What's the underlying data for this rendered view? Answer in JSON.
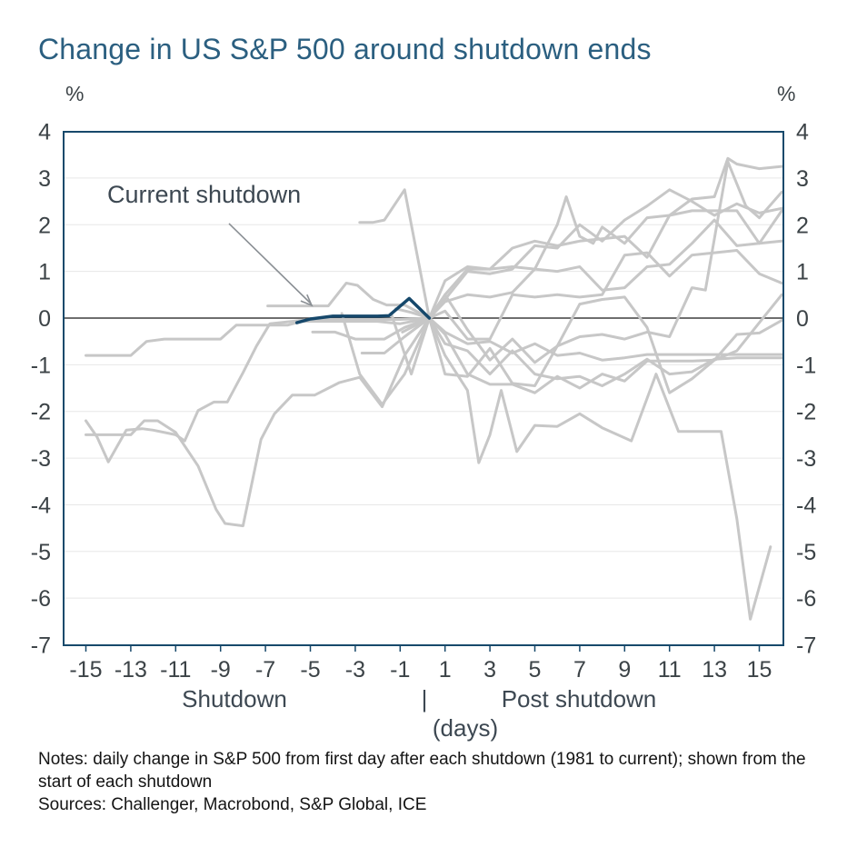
{
  "title": "Change in US S&P 500 around shutdown ends",
  "y_unit_left": "%",
  "y_unit_right": "%",
  "annotation": {
    "label": "Current shutdown"
  },
  "axis_group_labels": {
    "shutdown": "Shutdown",
    "divider": "|",
    "post_shutdown": "Post shutdown",
    "unit": "(days)"
  },
  "notes": "Notes: daily change in S&P 500 from first day after each shutdown (1981 to current); shown from the start of each shutdown",
  "sources": "Sources: Challenger, Macrobond, S&P Global, ICE",
  "colors": {
    "title": "#2b5f80",
    "border": "#17496b",
    "grid": "#e7e7e7",
    "zero_line": "#3f3f3f",
    "gray_series": "#c7c7c7",
    "current_series": "#16486b",
    "tick_text": "#3c4347",
    "arrow": "#8a8f94"
  },
  "chart_data": {
    "type": "line",
    "title": "Change in US S&P 500 around shutdown ends",
    "xlabel": "(days)",
    "ylabel": "%",
    "xlim": [
      -16,
      16.2
    ],
    "ylim": [
      -7,
      4
    ],
    "xticks": [
      -15,
      -13,
      -11,
      -9,
      -7,
      -5,
      -3,
      -1,
      1,
      3,
      5,
      7,
      9,
      11,
      13,
      15
    ],
    "yticks": [
      4,
      3,
      2,
      1,
      0,
      -1,
      -2,
      -3,
      -4,
      -5,
      -6,
      -7
    ],
    "grid": "horizontal-only",
    "legend": "none",
    "annotation": {
      "text": "Current shutdown",
      "points_to_series": "current_shutdown"
    },
    "x_phase_labels": [
      "Shutdown",
      "Post shutdown"
    ],
    "series": [
      {
        "name": "historical_shutdown_1",
        "role": "gray",
        "points": [
          [
            -15,
            -0.8
          ],
          [
            -14,
            -0.8
          ],
          [
            -13,
            -0.8
          ],
          [
            -12.3,
            -0.5
          ],
          [
            -11.5,
            -0.45
          ],
          [
            -10,
            -0.45
          ],
          [
            -9,
            -0.45
          ],
          [
            -8.3,
            -0.15
          ],
          [
            -7,
            -0.15
          ],
          [
            -6,
            -0.15
          ],
          [
            -5.4,
            -0.07
          ],
          [
            -4,
            -0.07
          ],
          [
            -3,
            -0.07
          ],
          [
            -2,
            -0.07
          ],
          [
            -1,
            -0.12
          ],
          [
            0.3,
            0
          ],
          [
            1,
            -0.3
          ],
          [
            2,
            -0.55
          ],
          [
            3,
            -0.5
          ],
          [
            4,
            -0.75
          ],
          [
            5,
            -0.55
          ],
          [
            6,
            -0.8
          ],
          [
            7,
            -0.75
          ],
          [
            8,
            -0.9
          ],
          [
            9,
            -0.85
          ],
          [
            10,
            -0.78
          ],
          [
            11,
            -0.78
          ],
          [
            12,
            -0.78
          ],
          [
            13,
            -0.78
          ],
          [
            14,
            -0.78
          ],
          [
            15,
            -0.78
          ],
          [
            16,
            -0.78
          ]
        ]
      },
      {
        "name": "historical_shutdown_2",
        "role": "gray",
        "points": [
          [
            -15,
            -2.2
          ],
          [
            -14.5,
            -2.55
          ],
          [
            -14,
            -3.08
          ],
          [
            -13.2,
            -2.4
          ],
          [
            -12.5,
            -2.37
          ],
          [
            -12,
            -2.4
          ],
          [
            -11,
            -2.5
          ],
          [
            -10.6,
            -2.63
          ],
          [
            -10,
            -1.98
          ],
          [
            -9.3,
            -1.8
          ],
          [
            -8.7,
            -1.8
          ],
          [
            -8,
            -1.17
          ],
          [
            -7.4,
            -0.6
          ],
          [
            -6.8,
            -0.12
          ],
          [
            -6,
            -0.08
          ],
          [
            -5,
            -0.03
          ],
          [
            -4,
            -0.03
          ],
          [
            -3,
            -0.03
          ],
          [
            -2,
            -0.03
          ],
          [
            -1,
            -0.03
          ],
          [
            0.3,
            0
          ],
          [
            1,
            -0.35
          ],
          [
            2,
            -1.2
          ],
          [
            3,
            -1.42
          ],
          [
            4,
            -1.42
          ],
          [
            5,
            -1.6
          ],
          [
            6,
            -1.25
          ],
          [
            7,
            -1.5
          ],
          [
            8,
            -1.2
          ],
          [
            9,
            -1.35
          ],
          [
            10,
            -0.92
          ],
          [
            11,
            -0.92
          ],
          [
            12,
            -0.92
          ],
          [
            13,
            -0.9
          ],
          [
            14,
            -0.35
          ],
          [
            15,
            -0.32
          ],
          [
            16,
            -0.05
          ]
        ]
      },
      {
        "name": "historical_shutdown_3",
        "role": "gray",
        "points": [
          [
            -15,
            -2.5
          ],
          [
            -14,
            -2.5
          ],
          [
            -13,
            -2.5
          ],
          [
            -12.4,
            -2.2
          ],
          [
            -11.8,
            -2.2
          ],
          [
            -11,
            -2.45
          ],
          [
            -10,
            -3.17
          ],
          [
            -9.2,
            -4.1
          ],
          [
            -8.8,
            -4.4
          ],
          [
            -8,
            -4.45
          ],
          [
            -7.2,
            -2.6
          ],
          [
            -6.6,
            -2.05
          ],
          [
            -5.8,
            -1.65
          ],
          [
            -4.8,
            -1.65
          ],
          [
            -3.7,
            -1.38
          ],
          [
            -2.8,
            -1.27
          ],
          [
            -1.8,
            -1.9
          ],
          [
            -0.8,
            -0.8
          ],
          [
            0.3,
            0
          ],
          [
            1,
            0.35
          ],
          [
            2,
            0.5
          ],
          [
            3,
            0.45
          ],
          [
            4,
            0.55
          ],
          [
            5,
            1.05
          ],
          [
            6,
            1.0
          ],
          [
            7,
            1.1
          ],
          [
            8,
            0.6
          ],
          [
            9,
            0.65
          ],
          [
            10,
            1.1
          ],
          [
            11,
            1.15
          ],
          [
            12,
            1.6
          ],
          [
            13,
            2.1
          ],
          [
            14,
            1.55
          ],
          [
            15,
            1.6
          ],
          [
            16,
            1.65
          ]
        ]
      },
      {
        "name": "historical_shutdown_4",
        "role": "gray",
        "points": [
          [
            -6.9,
            0.26
          ],
          [
            -6,
            0.26
          ],
          [
            -5,
            0.26
          ],
          [
            -4.2,
            0.26
          ],
          [
            -3.4,
            0.75
          ],
          [
            -2.9,
            0.7
          ],
          [
            -2.2,
            0.4
          ],
          [
            -1.6,
            0.28
          ],
          [
            -0.8,
            0.28
          ],
          [
            0.3,
            0
          ],
          [
            1,
            0.5
          ],
          [
            2,
            1.05
          ],
          [
            3,
            1.05
          ],
          [
            4,
            1.1
          ],
          [
            5,
            1.05
          ],
          [
            6,
            2.0
          ],
          [
            6.4,
            2.6
          ],
          [
            7,
            1.75
          ],
          [
            7.6,
            1.6
          ],
          [
            8,
            1.95
          ],
          [
            9,
            1.6
          ],
          [
            10,
            2.15
          ],
          [
            11,
            2.2
          ],
          [
            12,
            2.55
          ],
          [
            13,
            2.6
          ],
          [
            13.6,
            3.42
          ],
          [
            14,
            3.3
          ],
          [
            15,
            3.2
          ],
          [
            16,
            3.25
          ]
        ]
      },
      {
        "name": "historical_shutdown_5",
        "role": "gray",
        "points": [
          [
            -2.8,
            2.05
          ],
          [
            -2.2,
            2.05
          ],
          [
            -1.7,
            2.1
          ],
          [
            -0.8,
            2.75
          ],
          [
            0.3,
            0
          ],
          [
            1,
            0.4
          ],
          [
            2,
            1.0
          ],
          [
            3,
            0.95
          ],
          [
            4,
            1.05
          ],
          [
            5,
            1.55
          ],
          [
            6,
            1.5
          ],
          [
            7,
            2.0
          ],
          [
            8,
            1.65
          ],
          [
            9,
            2.1
          ],
          [
            10,
            2.4
          ],
          [
            11,
            2.75
          ],
          [
            12,
            2.5
          ],
          [
            13,
            2.2
          ],
          [
            14,
            2.45
          ],
          [
            15,
            2.25
          ],
          [
            16,
            2.35
          ]
        ]
      },
      {
        "name": "historical_shutdown_6",
        "role": "gray",
        "points": [
          [
            -4.9,
            -0.3
          ],
          [
            -3.9,
            -0.3
          ],
          [
            -3,
            -0.45
          ],
          [
            -1.7,
            -0.45
          ],
          [
            -0.8,
            -0.2
          ],
          [
            0.3,
            0
          ],
          [
            1,
            -0.8
          ],
          [
            2,
            -1.55
          ],
          [
            2.5,
            -3.1
          ],
          [
            3,
            -2.5
          ],
          [
            3.5,
            -1.55
          ],
          [
            4.2,
            -2.86
          ],
          [
            5,
            -2.3
          ],
          [
            6,
            -2.32
          ],
          [
            7,
            -2.05
          ],
          [
            8,
            -2.35
          ],
          [
            9.3,
            -2.63
          ],
          [
            10.4,
            -1.2
          ],
          [
            11.4,
            -2.43
          ],
          [
            12,
            -2.43
          ],
          [
            13.3,
            -2.43
          ],
          [
            14,
            -4.3
          ],
          [
            14.6,
            -6.45
          ],
          [
            15.5,
            -4.9
          ]
        ]
      },
      {
        "name": "historical_shutdown_7",
        "role": "gray",
        "points": [
          [
            -1.2,
            0.2
          ],
          [
            -0.5,
            0.12
          ],
          [
            0.3,
            0
          ],
          [
            1,
            -1.2
          ],
          [
            2,
            -1.25
          ],
          [
            3,
            -0.65
          ],
          [
            4,
            -1.4
          ],
          [
            5,
            -1.45
          ],
          [
            6,
            -0.6
          ],
          [
            7,
            -0.4
          ],
          [
            8,
            -0.35
          ],
          [
            9,
            -0.45
          ],
          [
            10,
            -0.3
          ],
          [
            11,
            -0.4
          ],
          [
            12,
            0.65
          ],
          [
            12.6,
            0.6
          ],
          [
            13.6,
            3.35
          ],
          [
            14.4,
            2.4
          ],
          [
            15,
            2.15
          ],
          [
            16,
            2.7
          ]
        ]
      },
      {
        "name": "historical_shutdown_8",
        "role": "gray",
        "points": [
          [
            -3.6,
            0.1
          ],
          [
            -2.8,
            -1.2
          ],
          [
            -1.8,
            -1.85
          ],
          [
            -0.8,
            -1.2
          ],
          [
            0.3,
            0
          ],
          [
            1,
            0.5
          ],
          [
            2,
            -0.25
          ],
          [
            3,
            -0.9
          ],
          [
            4,
            -0.45
          ],
          [
            5,
            -0.95
          ],
          [
            6,
            -0.6
          ],
          [
            7,
            0.3
          ],
          [
            8,
            0.4
          ],
          [
            9,
            0.45
          ],
          [
            10,
            -0.2
          ],
          [
            11,
            -1.6
          ],
          [
            12,
            -1.3
          ],
          [
            13,
            -0.9
          ],
          [
            14,
            -0.7
          ],
          [
            15,
            -0.1
          ],
          [
            16,
            0.5
          ]
        ]
      },
      {
        "name": "historical_shutdown_9",
        "role": "gray",
        "points": [
          [
            -2.7,
            -0.75
          ],
          [
            -1.7,
            -0.75
          ],
          [
            -0.8,
            -0.4
          ],
          [
            0.3,
            0
          ],
          [
            1,
            0.8
          ],
          [
            2,
            1.1
          ],
          [
            3,
            1.05
          ],
          [
            4,
            1.5
          ],
          [
            5,
            1.65
          ],
          [
            6,
            1.55
          ],
          [
            7,
            1.65
          ],
          [
            8,
            1.7
          ],
          [
            9,
            1.75
          ],
          [
            10,
            1.3
          ],
          [
            11,
            2.2
          ],
          [
            12,
            2.3
          ],
          [
            13,
            2.3
          ],
          [
            14,
            2.3
          ],
          [
            15,
            1.6
          ],
          [
            16,
            2.3
          ]
        ]
      },
      {
        "name": "historical_shutdown_10",
        "role": "gray",
        "points": [
          [
            -1.4,
            0.1
          ],
          [
            -0.5,
            -1.2
          ],
          [
            0.3,
            0
          ],
          [
            1,
            0.15
          ],
          [
            2,
            -0.45
          ],
          [
            3,
            -0.45
          ],
          [
            4,
            0.5
          ],
          [
            5,
            0.45
          ],
          [
            6,
            0.5
          ],
          [
            7,
            0.45
          ],
          [
            8,
            0.5
          ],
          [
            9,
            1.35
          ],
          [
            10,
            1.4
          ],
          [
            11,
            0.9
          ],
          [
            12,
            1.35
          ],
          [
            13,
            1.4
          ],
          [
            14,
            1.45
          ],
          [
            15,
            0.95
          ],
          [
            16,
            0.75
          ]
        ]
      },
      {
        "name": "historical_shutdown_11",
        "role": "gray",
        "points": [
          [
            -0.9,
            -0.3
          ],
          [
            0.3,
            0
          ],
          [
            1,
            -0.55
          ],
          [
            2,
            -0.7
          ],
          [
            3,
            -1.2
          ],
          [
            4,
            -0.7
          ],
          [
            5,
            -1.2
          ],
          [
            6,
            -1.3
          ],
          [
            7,
            -1.25
          ],
          [
            8,
            -1.45
          ],
          [
            9,
            -1.2
          ],
          [
            10,
            -0.88
          ],
          [
            11,
            -1.2
          ],
          [
            12,
            -1.15
          ],
          [
            13,
            -0.88
          ],
          [
            14,
            -0.85
          ],
          [
            15,
            -0.85
          ],
          [
            16,
            -0.85
          ]
        ]
      },
      {
        "name": "current_shutdown",
        "role": "current",
        "label": "Current shutdown",
        "points": [
          [
            -5.6,
            -0.1
          ],
          [
            -5,
            -0.02
          ],
          [
            -4,
            0.04
          ],
          [
            -3,
            0.04
          ],
          [
            -2,
            0.04
          ],
          [
            -1.5,
            0.05
          ],
          [
            -0.6,
            0.42
          ],
          [
            0.3,
            0
          ]
        ]
      }
    ]
  }
}
